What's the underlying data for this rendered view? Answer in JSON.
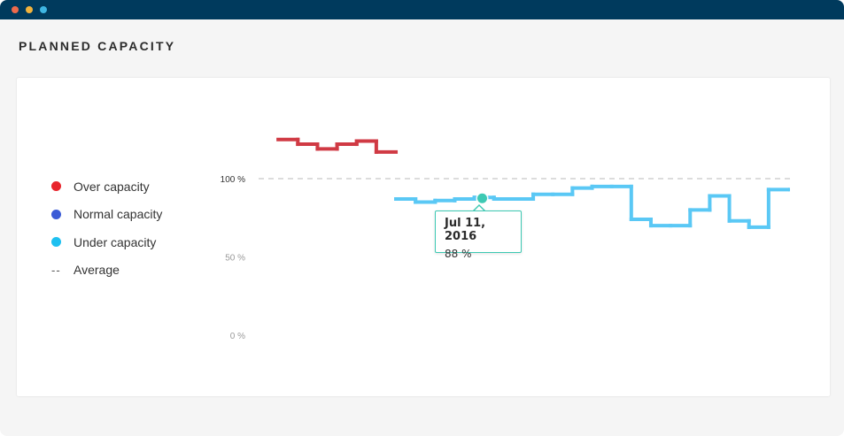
{
  "window": {
    "controls": [
      "close-dot",
      "minimize-dot",
      "maximize-dot"
    ],
    "control_colors": [
      "#ef6a4c",
      "#f2b33d",
      "#3fb6e3"
    ],
    "titlebar_color": "#003a5d"
  },
  "page": {
    "title": "PLANNED CAPACITY"
  },
  "legend": {
    "items": [
      {
        "label": "Over capacity",
        "color": "#e8242c",
        "marker": "dot"
      },
      {
        "label": "Normal capacity",
        "color": "#3b5bd6",
        "marker": "dot"
      },
      {
        "label": "Under capacity",
        "color": "#1ec0f0",
        "marker": "dot"
      },
      {
        "label": "Average",
        "marker": "--"
      }
    ]
  },
  "chart_data": {
    "type": "line",
    "interpolation": "step",
    "title": "",
    "xlabel": "",
    "ylabel": "",
    "ylim": [
      0,
      130
    ],
    "y_ticks": [
      {
        "value": 100,
        "label": "100 %"
      },
      {
        "value": 50,
        "label": "50 %"
      },
      {
        "value": 0,
        "label": "0 %"
      }
    ],
    "average": 100,
    "x": [
      0,
      1,
      2,
      3,
      4,
      5,
      6,
      7,
      8,
      9,
      10,
      11,
      12,
      13,
      14,
      15,
      16,
      17,
      18,
      19,
      20,
      21,
      22,
      23,
      24,
      25,
      26,
      27
    ],
    "values": [
      0,
      125,
      122,
      119,
      122,
      124,
      117,
      87,
      85,
      86,
      87,
      88,
      87,
      87,
      90,
      90,
      94,
      95,
      95,
      74,
      70,
      70,
      80,
      89,
      73,
      69,
      93,
      93
    ],
    "colors": {
      "over": "#d03a44",
      "normal": "#3b5bd6",
      "under": "#5ac8f5",
      "average_line": "#c8c8c8"
    },
    "tooltip": {
      "date": "Jul 11, 2016",
      "value": "88 %",
      "point_index": 11,
      "color": "#3dc9b3"
    },
    "legend_position": "left",
    "grid": false
  }
}
